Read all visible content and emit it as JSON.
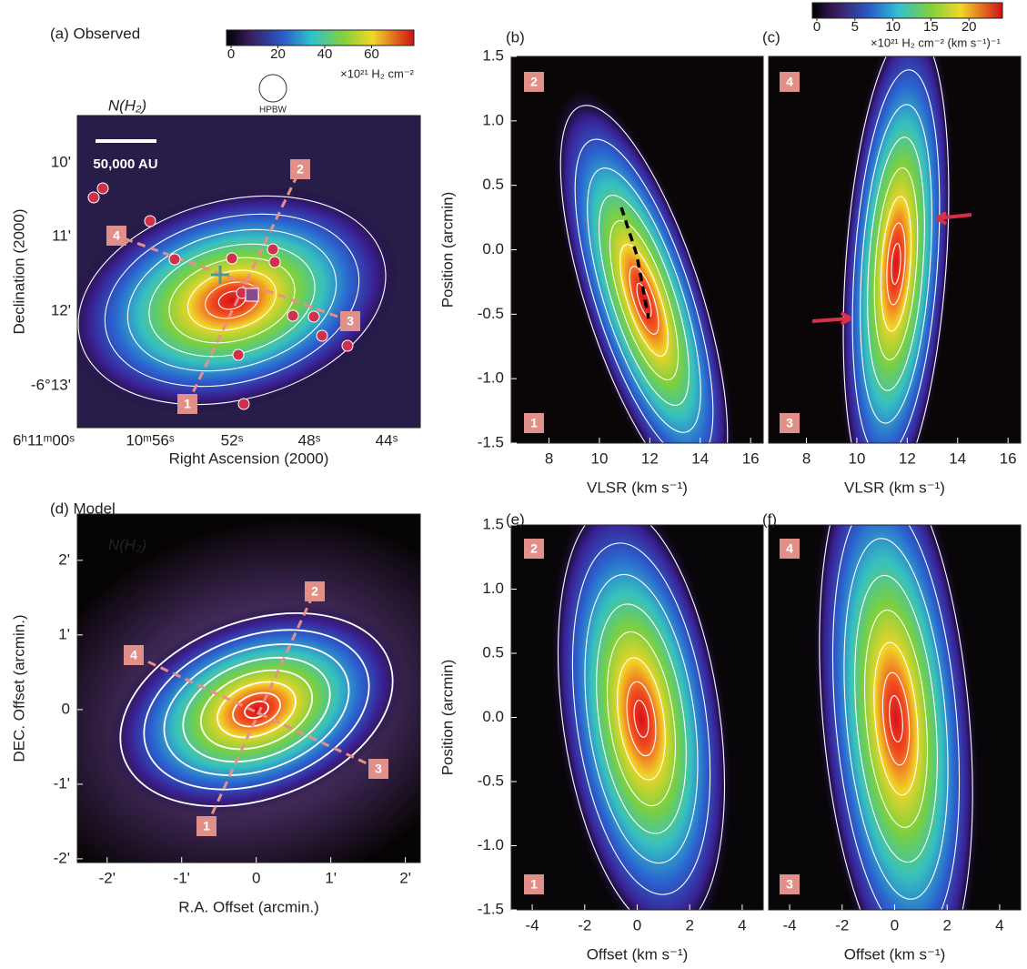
{
  "chart_data": [
    {
      "type": "heatmap",
      "title": "(a) Observed",
      "annotation": "N(H₂)",
      "scale_label": "50,000 AU",
      "beam_label": "HPBW",
      "xlabel": "Right Ascension (2000)",
      "ylabel": "Declination (2000)",
      "xtick_labels": [
        "6ʰ11ᵐ00ˢ",
        "10ᵐ56ˢ",
        "52ˢ",
        "48ˢ",
        "44ˢ"
      ],
      "ytick_labels": [
        "10'",
        "11'",
        "12'",
        "-6°13'"
      ],
      "cut_labels": [
        "1",
        "2",
        "3",
        "4"
      ],
      "colorbar": {
        "ticks": [
          0,
          20,
          40,
          60
        ],
        "lim": [
          0,
          80
        ],
        "label": "×10²¹ H₂ cm⁻²"
      }
    },
    {
      "type": "heatmap",
      "title": "(b)",
      "xlabel": "VLSR (km s⁻¹)",
      "ylabel": "Position (arcmin)",
      "xlim": [
        6.5,
        16.5
      ],
      "xticks": [
        8,
        10,
        12,
        14,
        16
      ],
      "ylim": [
        -1.5,
        1.5
      ],
      "yticks": [
        -1.5,
        {
          "value": -1,
          "label": "-1.0"
        },
        -0.5,
        {
          "value": 0,
          "label": "0.0"
        },
        0.5,
        {
          "value": 1,
          "label": "1.0"
        },
        1.5
      ],
      "cut_labels": [
        "2",
        "1"
      ]
    },
    {
      "type": "heatmap",
      "title": "(c)",
      "xlabel": "VLSR (km s⁻¹)",
      "xlim": [
        6.5,
        16.5
      ],
      "xticks": [
        8,
        10,
        12,
        14,
        16
      ],
      "ylim": [
        -1.5,
        1.5
      ],
      "cut_labels": [
        "4",
        "3"
      ],
      "colorbar": {
        "ticks": [
          0,
          5,
          10,
          15,
          20
        ],
        "lim": [
          0,
          25
        ],
        "label": "×10²¹ H₂ cm⁻² (km s⁻¹)⁻¹"
      }
    },
    {
      "type": "heatmap",
      "title": "(d) Model",
      "annotation": "N(H₂)",
      "xlabel": "R.A. Offset (arcmin.)",
      "ylabel": "DEC. Offset (arcmin.)",
      "xlim": [
        -2.4,
        2.2
      ],
      "xticks": [
        {
          "value": -2,
          "label": "-2'"
        },
        {
          "value": -1,
          "label": "-1'"
        },
        0,
        {
          "value": 1,
          "label": "1'"
        },
        {
          "value": 2,
          "label": "2'"
        }
      ],
      "ylim": [
        -2.05,
        2.62
      ],
      "yticks": [
        {
          "value": -2,
          "label": "-2'"
        },
        {
          "value": -1,
          "label": "-1'"
        },
        0,
        {
          "value": 1,
          "label": "1'"
        },
        {
          "value": 2,
          "label": "2'"
        }
      ],
      "cut_labels": [
        "1",
        "2",
        "3",
        "4"
      ]
    },
    {
      "type": "heatmap",
      "title": "(e)",
      "xlabel": "Offset (km s⁻¹)",
      "ylabel": "Position (arcmin)",
      "xlim": [
        -4.8,
        4.8
      ],
      "xticks": [
        -4,
        -2,
        0,
        2,
        4
      ],
      "ylim": [
        -1.5,
        1.5
      ],
      "yticks": [
        -1.5,
        {
          "value": -1,
          "label": "-1.0"
        },
        -0.5,
        {
          "value": 0,
          "label": "0.0"
        },
        0.5,
        {
          "value": 1,
          "label": "1.0"
        },
        1.5
      ],
      "cut_labels": [
        "2",
        "1"
      ]
    },
    {
      "type": "heatmap",
      "title": "(f)",
      "xlabel": "Offset (km s⁻¹)",
      "xlim": [
        -4.8,
        4.8
      ],
      "xticks": [
        -4,
        -2,
        0,
        2,
        4
      ],
      "ylim": [
        -1.5,
        1.5
      ],
      "cut_labels": [
        "4",
        "3"
      ]
    }
  ]
}
